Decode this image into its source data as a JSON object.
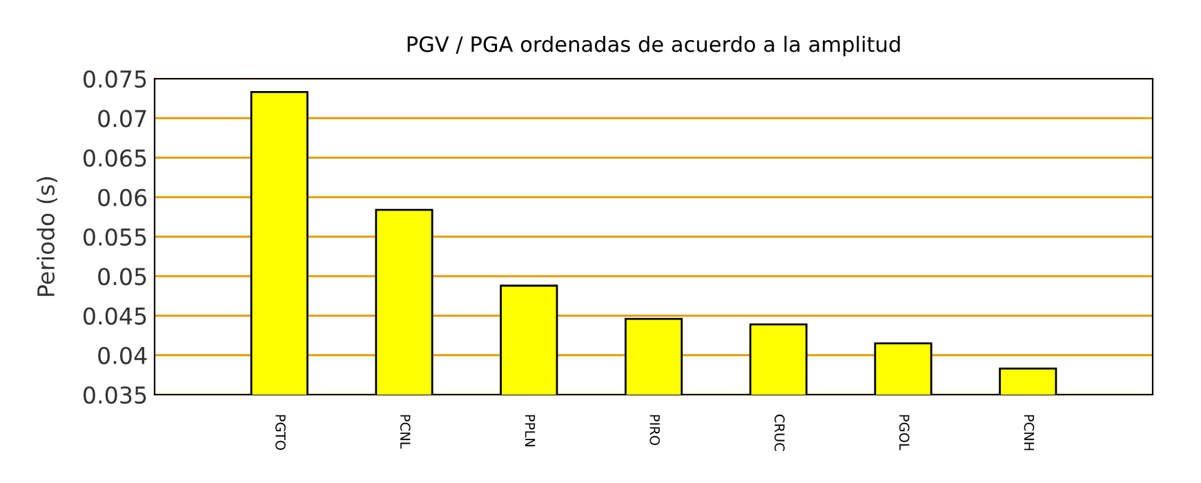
{
  "chart_data": {
    "type": "bar",
    "title": "PGV / PGA ordenadas de acuerdo a la amplitud",
    "ylabel": "Periodo (s)",
    "categories": [
      "PGTO",
      "PCNL",
      "PPLN",
      "PIRO",
      "CRUC",
      "PGOL",
      "PCNH"
    ],
    "values": [
      0.0733,
      0.0584,
      0.0488,
      0.0446,
      0.0439,
      0.0415,
      0.0383
    ],
    "color": "#ffff00",
    "ylim": [
      0.035,
      0.075
    ],
    "yticks": [
      0.035,
      0.04,
      0.045,
      0.05,
      0.055,
      0.06,
      0.065,
      0.07,
      0.075
    ],
    "grid": "y"
  }
}
